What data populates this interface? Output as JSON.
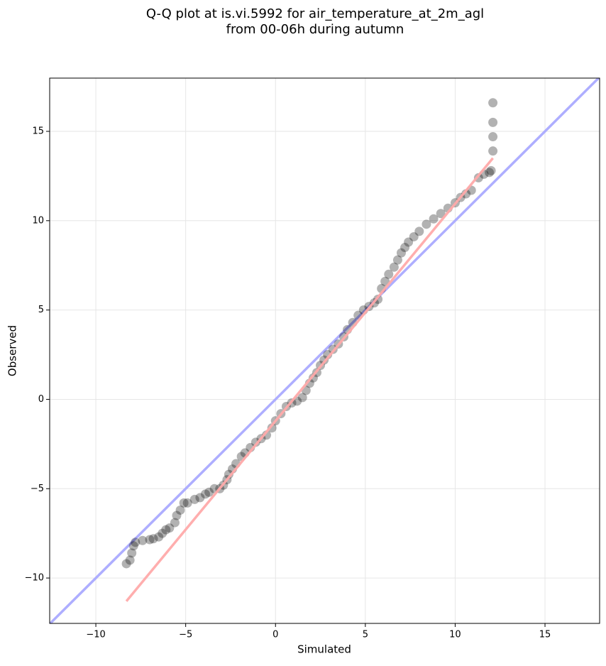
{
  "chart_data": {
    "type": "scatter",
    "title": "Q-Q plot at is.vi.5992 for air_temperature_at_2m_agl",
    "subtitle": "from 00-06h during autumn",
    "x_label": "Simulated",
    "y_label": "Observed",
    "xlim": [
      -12.57,
      18.04
    ],
    "ylim": [
      -12.54,
      17.98
    ],
    "xticks": [
      {
        "value": -10,
        "label": "−10"
      },
      {
        "value": -5,
        "label": "−5"
      },
      0,
      5,
      10,
      15
    ],
    "yticks": [
      {
        "value": -10,
        "label": "−10"
      },
      {
        "value": -5,
        "label": "−5"
      },
      0,
      5,
      10,
      15
    ],
    "grid": true,
    "series": [
      {
        "color": "#000000",
        "x": [
          -8.3,
          -8.1,
          -8.0,
          -7.9,
          -7.8,
          -7.4,
          -7.0,
          -6.8,
          -6.5,
          -6.3,
          -6.1,
          -5.9,
          -5.6,
          -5.5,
          -5.3,
          -5.1,
          -4.9,
          -4.5,
          -4.2,
          -3.9,
          -3.7,
          -3.4,
          -3.1,
          -2.9,
          -2.7,
          -2.6,
          -2.4,
          -2.2,
          -1.9,
          -1.7,
          -1.4,
          -1.1,
          -0.8,
          -0.5,
          -0.2,
          0,
          0.3,
          0.6,
          0.9,
          1.2,
          1.5,
          1.7,
          1.9,
          2.1,
          2.3,
          2.5,
          2.7,
          2.9,
          3.2,
          3.5,
          3.8,
          4.0,
          4.3,
          4.6,
          4.9,
          5.2,
          5.5,
          5.7,
          5.9,
          6.1,
          6.3,
          6.6,
          6.8,
          7.0,
          7.2,
          7.4,
          7.7,
          8.0,
          8.4,
          8.8,
          9.2,
          9.6,
          10.0,
          10.3,
          10.6,
          10.9,
          11.3,
          11.6,
          11.9,
          12.0,
          12.1,
          12.1,
          12.1,
          12.1
        ],
        "values": [
          -9.2,
          -9.0,
          -8.6,
          -8.2,
          -8.0,
          -7.9,
          -7.85,
          -7.8,
          -7.7,
          -7.5,
          -7.3,
          -7.2,
          -6.9,
          -6.5,
          -6.2,
          -5.8,
          -5.8,
          -5.6,
          -5.5,
          -5.3,
          -5.2,
          -5.0,
          -5.0,
          -4.8,
          -4.5,
          -4.2,
          -3.9,
          -3.6,
          -3.2,
          -3.0,
          -2.7,
          -2.4,
          -2.2,
          -2.0,
          -1.6,
          -1.2,
          -0.8,
          -0.4,
          -0.2,
          -0.1,
          0.1,
          0.5,
          0.9,
          1.2,
          1.5,
          1.9,
          2.2,
          2.5,
          2.8,
          3.1,
          3.5,
          3.9,
          4.3,
          4.7,
          5.0,
          5.2,
          5.4,
          5.6,
          6.2,
          6.6,
          7.0,
          7.4,
          7.8,
          8.2,
          8.5,
          8.8,
          9.1,
          9.4,
          9.8,
          10.1,
          10.4,
          10.7,
          11.0,
          11.3,
          11.5,
          11.7,
          12.4,
          12.6,
          12.7,
          12.8,
          13.9,
          14.7,
          15.5,
          16.6
        ]
      }
    ],
    "lines": [
      {
        "color": "#aaaaff",
        "x": [
          -12.57,
          18.04
        ],
        "values": [
          -12.57,
          18.04
        ]
      },
      {
        "color": "#ffaaaa",
        "x": [
          -8.3,
          12.1
        ],
        "values": [
          -11.3,
          13.5
        ]
      }
    ]
  }
}
